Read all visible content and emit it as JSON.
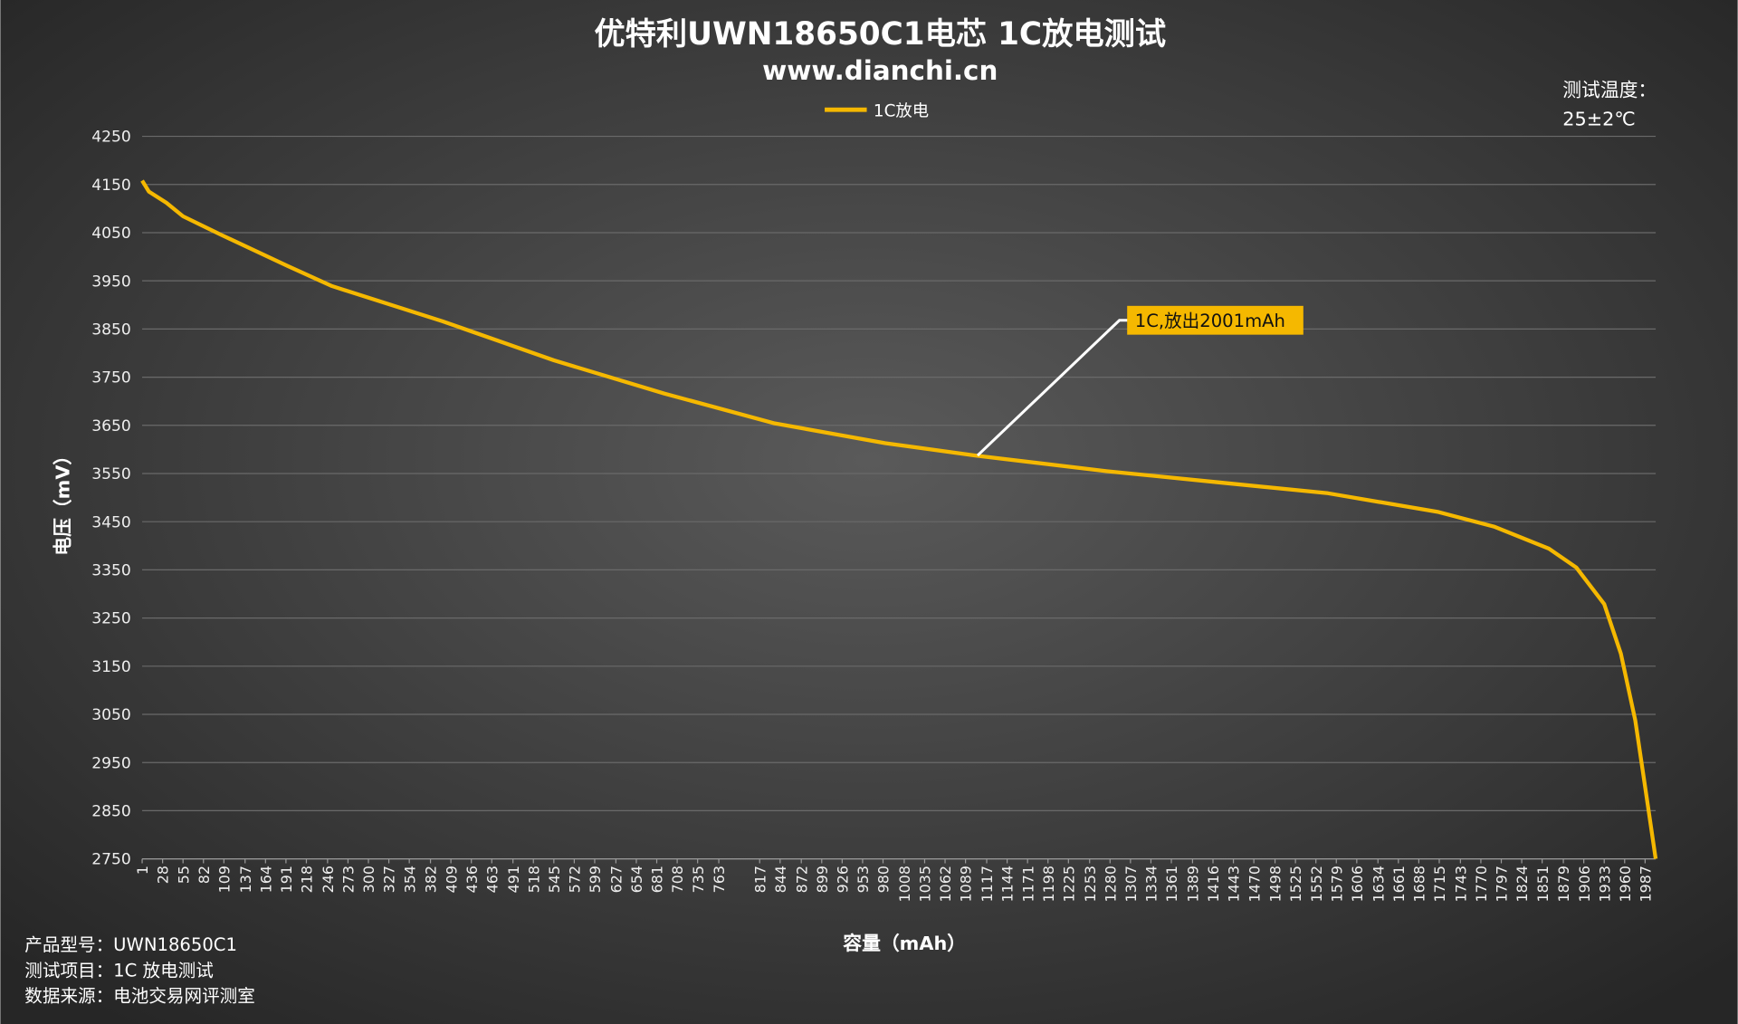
{
  "chart_data": {
    "type": "line",
    "title": "优特利UWN18650C1电芯 1C放电测试",
    "subtitle": "www.dianchi.cn",
    "x_label": "容量（mAh）",
    "y_label": "电压（mV）",
    "x": [
      1,
      10,
      33,
      55,
      106,
      193,
      252,
      398,
      545,
      691,
      837,
      983,
      1103,
      1275,
      1421,
      1568,
      1714,
      1787,
      1860,
      1896,
      1933,
      1955,
      1974,
      1987,
      2001
    ],
    "series": [
      {
        "name": "1C放电",
        "color": "#f5b800",
        "values": [
          4158,
          4135,
          4112,
          4084,
          4045,
          3981,
          3939,
          3866,
          3785,
          3716,
          3654,
          3613,
          3587,
          3555,
          3532,
          3509,
          3470,
          3440,
          3394,
          3355,
          3279,
          3176,
          3038,
          2900,
          2750
        ]
      }
    ],
    "xlim": [
      1,
      2001
    ],
    "xticks": [
      1,
      28,
      55,
      82,
      109,
      137,
      164,
      191,
      218,
      246,
      273,
      300,
      327,
      354,
      382,
      409,
      436,
      463,
      491,
      518,
      545,
      572,
      599,
      627,
      654,
      681,
      708,
      735,
      763,
      817,
      844,
      872,
      899,
      926,
      953,
      980,
      1008,
      1035,
      1062,
      1089,
      1117,
      1144,
      1171,
      1198,
      1225,
      1253,
      1280,
      1307,
      1334,
      1361,
      1389,
      1416,
      1443,
      1470,
      1498,
      1525,
      1552,
      1579,
      1606,
      1634,
      1661,
      1688,
      1715,
      1743,
      1770,
      1797,
      1824,
      1851,
      1879,
      1906,
      1933,
      1960,
      1987
    ],
    "ylim": [
      2750,
      4250
    ],
    "yticks": [
      2750,
      2850,
      2950,
      3050,
      3150,
      3250,
      3350,
      3450,
      3550,
      3650,
      3750,
      3850,
      3950,
      4050,
      4150,
      4250
    ],
    "grid": true,
    "legend": "top",
    "annotations": [
      {
        "text": "1C,放出2001mAh"
      }
    ]
  },
  "notes": {
    "temperature_label": "测试温度：",
    "temperature": "25±2℃"
  },
  "footer": [
    "产品型号：UWN18650C1",
    "测试项目：1C 放电测试",
    "数据来源：电池交易网评测室"
  ]
}
